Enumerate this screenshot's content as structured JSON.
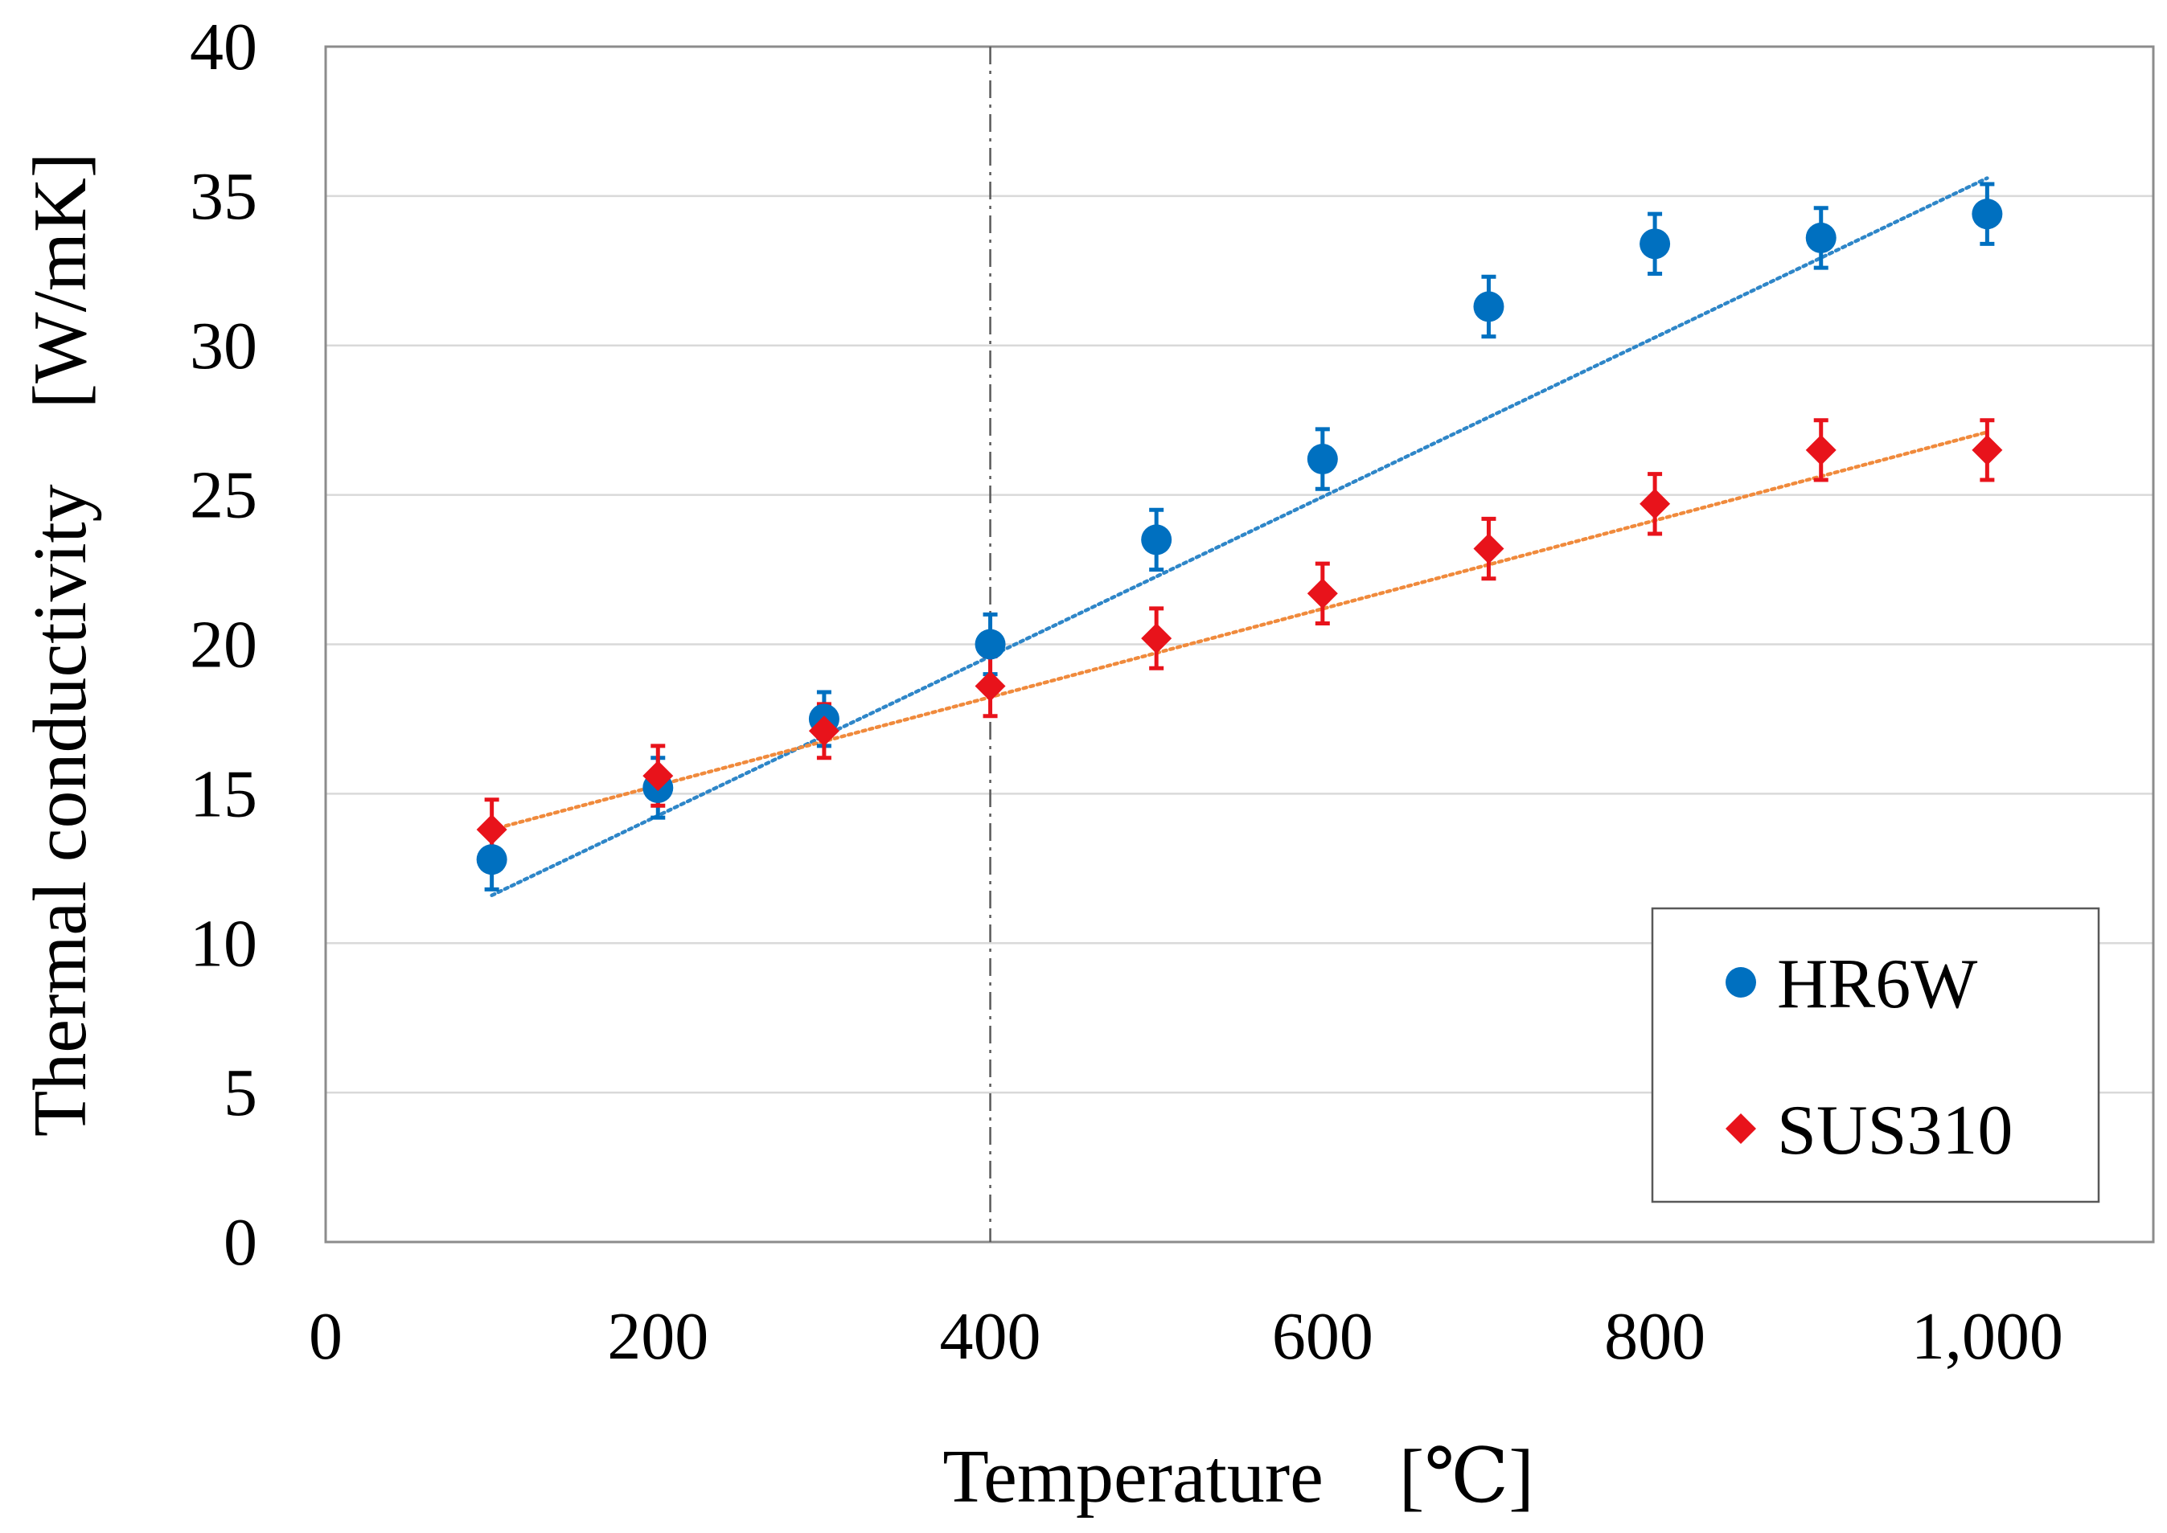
{
  "chart_data": {
    "type": "scatter",
    "title": "",
    "xlabel": "Temperature　[℃]",
    "ylabel": "Thermal conductivity　[W/mK]",
    "xlim": [
      0,
      1100
    ],
    "ylim": [
      0,
      40
    ],
    "x_ticks": [
      0,
      200,
      400,
      600,
      800,
      1000
    ],
    "x_tick_labels": [
      "0",
      "200",
      "400",
      "600",
      "800",
      "1,000"
    ],
    "y_ticks": [
      0,
      5,
      10,
      15,
      20,
      25,
      30,
      35,
      40
    ],
    "y_tick_labels": [
      "0",
      "5",
      "10",
      "15",
      "20",
      "25",
      "30",
      "35",
      "40"
    ],
    "grid": "horizontal",
    "reference_line": {
      "x": 400,
      "style": "dash-dot"
    },
    "legend": {
      "position": "bottom-right"
    },
    "series": [
      {
        "name": "HR6W",
        "marker": "circle",
        "color": "#0070C0",
        "trend_color": "#2E86C8",
        "x": [
          100,
          200,
          300,
          400,
          500,
          600,
          700,
          800,
          900,
          1000
        ],
        "y": [
          12.8,
          15.2,
          17.5,
          20.0,
          23.5,
          26.2,
          31.3,
          33.4,
          33.6,
          34.4
        ],
        "error": [
          1.0,
          1.0,
          0.9,
          1.0,
          1.0,
          1.0,
          1.0,
          1.0,
          1.0,
          1.0
        ],
        "trendline": {
          "x": [
            100,
            1000
          ],
          "y": [
            11.6,
            35.6
          ]
        }
      },
      {
        "name": "SUS310",
        "marker": "diamond",
        "color": "#E8131B",
        "trend_color": "#F08A3C",
        "x": [
          100,
          200,
          300,
          400,
          500,
          600,
          700,
          800,
          900,
          1000
        ],
        "y": [
          13.8,
          15.6,
          17.1,
          18.6,
          20.2,
          21.7,
          23.2,
          24.7,
          26.5,
          26.5
        ],
        "error": [
          1.0,
          1.0,
          0.9,
          1.0,
          1.0,
          1.0,
          1.0,
          1.0,
          1.0,
          1.0
        ],
        "trendline": {
          "x": [
            100,
            1000
          ],
          "y": [
            13.8,
            27.1
          ]
        }
      }
    ]
  }
}
